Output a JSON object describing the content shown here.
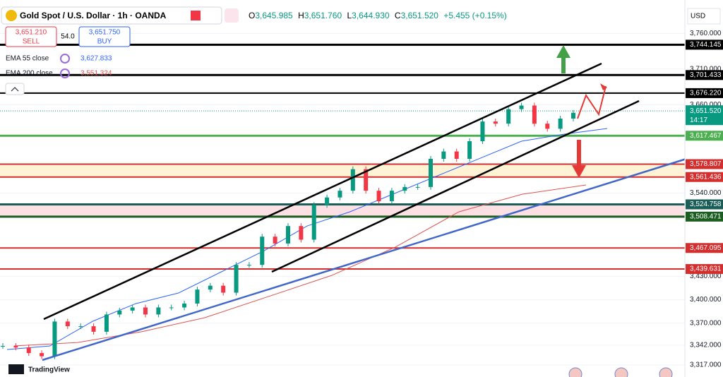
{
  "header": {
    "title": "Gold Spot / U.S. Dollar · 1h · OANDA",
    "open_label": "O",
    "open": "3,645.985",
    "high_label": "H",
    "high": "3,651.760",
    "low_label": "L",
    "low": "3,644.930",
    "close_label": "C",
    "close": "3,651.520",
    "change": "+5.455 (+0.15%)",
    "sell_price": "3,651.210",
    "sell": "SELL",
    "spread": "54.0",
    "buy_price": "3,651.750",
    "buy": "BUY",
    "currency": "USD",
    "brand": "TradingView"
  },
  "chart_data": {
    "type": "candlestick",
    "log_scale": true,
    "ylim": [
      3302,
      3808
    ],
    "yticks": [
      {
        "value": 3760,
        "label": "3,760.000"
      },
      {
        "value": 3710,
        "label": "3,710.000"
      },
      {
        "value": 3660,
        "label": "3,660.000"
      },
      {
        "value": 3540,
        "label": "3,540.000"
      },
      {
        "value": 3430,
        "label": "3,430.000"
      },
      {
        "value": 3400,
        "label": "3,400.000"
      },
      {
        "value": 3370,
        "label": "3,370.000"
      },
      {
        "value": 3342,
        "label": "3,342.000"
      },
      {
        "value": 3317,
        "label": "3,317.000"
      }
    ],
    "up_color": "#089981",
    "down_color": "#f23645",
    "values": [
      3341,
      3339,
      3332,
      3328,
      3372,
      3366,
      3366,
      3359,
      3381,
      3386,
      3390,
      3381,
      3390,
      3390,
      3395,
      3413,
      3418,
      3409,
      3445,
      3445,
      3482,
      3473,
      3496,
      3478,
      3524,
      3534,
      3543,
      3572,
      3543,
      3529,
      3543,
      3548,
      3548,
      3586,
      3596,
      3586,
      3610,
      3637,
      3634,
      3654,
      3659,
      3634,
      3627,
      3641,
      3649
    ],
    "series": [
      {
        "name": "EMA 55 close",
        "color": "#2962ff",
        "value_label": "3,627.833",
        "values": [
          3336.5,
          3341,
          3372.4,
          3394.9,
          3408.6,
          3436,
          3463.6,
          3496.1,
          3514.9,
          3538.4,
          3562.1,
          3585.9,
          3610,
          3619.6,
          3627.4
        ]
      },
      {
        "name": "EMA 200 close",
        "color": "#e0524f",
        "value_label": "3,551.324",
        "values": [
          3341,
          3345.4,
          3358.9,
          3376.9,
          3404,
          3431.4,
          3468.3,
          3514.9,
          3538.4,
          3550.7
        ]
      }
    ],
    "current": {
      "value": 3651.52,
      "label": "3,651.520",
      "countdown": "14:17",
      "color": "#089981"
    },
    "levels": [
      {
        "value": 3744.145,
        "label": "3,744.145",
        "color": "#000000",
        "width": 3
      },
      {
        "value": 3701.433,
        "label": "3,701.433",
        "color": "#000000",
        "width": 3
      },
      {
        "value": 3676.22,
        "label": "3,676.220",
        "color": "#000000",
        "width": 2
      },
      {
        "value": 3617.467,
        "label": "3,617.467",
        "color": "#4caf50",
        "width": 3
      },
      {
        "value": 3578.807,
        "label": "3,578.807",
        "color": "#d32f2f",
        "width": 2,
        "band_color": "#fff3d6"
      },
      {
        "value": 3561.436,
        "label": "3,561.436",
        "color": "#d32f2f",
        "width": 2
      },
      {
        "value": 3524.758,
        "label": "3,524.758",
        "color": "#1b5e57",
        "width": 3,
        "band_color": "#fde0e4"
      },
      {
        "value": 3508.471,
        "label": "3,508.471",
        "color": "#1b5e20",
        "width": 3
      },
      {
        "value": 3467.095,
        "label": "3,467.095",
        "color": "#d32f2f",
        "width": 2
      },
      {
        "value": 3439.631,
        "label": "3,439.631",
        "color": "#d32f2f",
        "width": 2
      }
    ]
  }
}
